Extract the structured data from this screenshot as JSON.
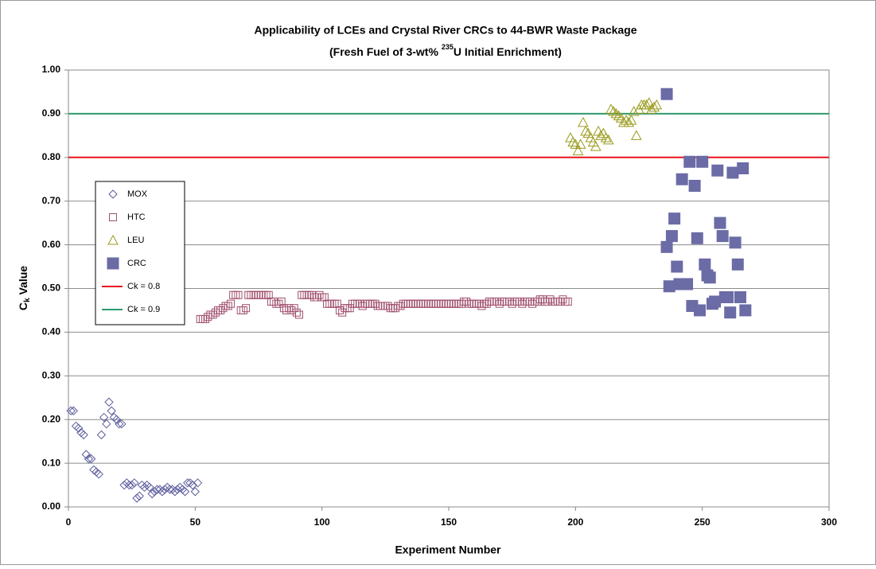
{
  "chart_data": {
    "type": "scatter",
    "title": "Applicability of LCEs and Crystal River CRCs to 44-BWR Waste Package",
    "subtitle_parts": [
      "(Fresh Fuel of 3-wt% ",
      "235",
      "U Initial Enrichment)"
    ],
    "xlabel": "Experiment Number",
    "ylabel_parts": [
      "C",
      "k",
      " Value"
    ],
    "xlim": [
      0,
      300
    ],
    "xticks": [
      0,
      50,
      100,
      150,
      200,
      250,
      300
    ],
    "ylim": [
      0,
      1
    ],
    "yticks": [
      {
        "value": 0,
        "label": "0.00"
      },
      {
        "value": 0.1,
        "label": "0.10"
      },
      {
        "value": 0.2,
        "label": "0.20"
      },
      {
        "value": 0.3,
        "label": "0.30"
      },
      {
        "value": 0.4,
        "label": "0.40"
      },
      {
        "value": 0.5,
        "label": "0.50"
      },
      {
        "value": 0.6,
        "label": "0.60"
      },
      {
        "value": 0.7,
        "label": "0.70"
      },
      {
        "value": 0.8,
        "label": "0.80"
      },
      {
        "value": 0.9,
        "label": "0.90"
      },
      {
        "value": 1,
        "label": "1.00"
      }
    ],
    "grid": true,
    "legend": "left",
    "series": [
      {
        "name": "MOX",
        "marker": "diamond",
        "color": "#5c5c9e",
        "x": [
          1,
          2,
          3,
          4,
          5,
          6,
          7,
          8,
          9,
          10,
          11,
          12,
          13,
          14,
          15,
          16,
          17,
          18,
          19,
          20,
          21,
          22,
          23,
          24,
          25,
          26,
          27,
          28,
          29,
          30,
          31,
          32,
          33,
          34,
          35,
          36,
          37,
          38,
          39,
          40,
          41,
          42,
          43,
          44,
          45,
          46,
          47,
          48,
          49,
          50,
          51
        ],
        "values": [
          0.22,
          0.22,
          0.185,
          0.18,
          0.17,
          0.165,
          0.12,
          0.11,
          0.11,
          0.085,
          0.08,
          0.075,
          0.165,
          0.205,
          0.19,
          0.24,
          0.22,
          0.205,
          0.2,
          0.19,
          0.19,
          0.05,
          0.055,
          0.05,
          0.05,
          0.055,
          0.02,
          0.025,
          0.05,
          0.045,
          0.05,
          0.045,
          0.03,
          0.035,
          0.04,
          0.04,
          0.035,
          0.04,
          0.045,
          0.04,
          0.04,
          0.035,
          0.04,
          0.045,
          0.04,
          0.035,
          0.055,
          0.055,
          0.05,
          0.035,
          0.055
        ]
      },
      {
        "name": "HTC",
        "marker": "square",
        "color": "#a0506e",
        "x": [
          52,
          53,
          54,
          55,
          56,
          57,
          58,
          59,
          60,
          61,
          62,
          63,
          64,
          65,
          66,
          67,
          68,
          69,
          70,
          71,
          72,
          73,
          74,
          75,
          76,
          77,
          78,
          79,
          80,
          81,
          82,
          83,
          84,
          85,
          86,
          87,
          88,
          89,
          90,
          91,
          92,
          93,
          94,
          95,
          96,
          97,
          98,
          99,
          100,
          101,
          102,
          103,
          104,
          105,
          106,
          107,
          108,
          109,
          110,
          111,
          112,
          113,
          114,
          115,
          116,
          117,
          118,
          119,
          120,
          121,
          122,
          123,
          124,
          125,
          126,
          127,
          128,
          129,
          130,
          131,
          132,
          133,
          134,
          135,
          136,
          137,
          138,
          139,
          140,
          141,
          142,
          143,
          144,
          145,
          146,
          147,
          148,
          149,
          150,
          151,
          152,
          153,
          154,
          155,
          156,
          157,
          158,
          159,
          160,
          161,
          162,
          163,
          164,
          165,
          166,
          167,
          168,
          169,
          170,
          171,
          172,
          173,
          174,
          175,
          176,
          177,
          178,
          179,
          180,
          181,
          182,
          183,
          184,
          185,
          186,
          187,
          188,
          189,
          190,
          191,
          192,
          193,
          194,
          195,
          196,
          197
        ],
        "values": [
          0.43,
          0.43,
          0.43,
          0.435,
          0.44,
          0.44,
          0.445,
          0.45,
          0.45,
          0.455,
          0.46,
          0.46,
          0.465,
          0.485,
          0.485,
          0.485,
          0.45,
          0.45,
          0.455,
          0.485,
          0.485,
          0.485,
          0.485,
          0.485,
          0.485,
          0.485,
          0.485,
          0.485,
          0.47,
          0.47,
          0.465,
          0.465,
          0.47,
          0.455,
          0.45,
          0.455,
          0.45,
          0.455,
          0.445,
          0.44,
          0.485,
          0.485,
          0.485,
          0.485,
          0.485,
          0.48,
          0.48,
          0.485,
          0.48,
          0.48,
          0.465,
          0.465,
          0.465,
          0.465,
          0.465,
          0.45,
          0.445,
          0.455,
          0.455,
          0.455,
          0.465,
          0.465,
          0.465,
          0.465,
          0.46,
          0.465,
          0.465,
          0.465,
          0.465,
          0.465,
          0.46,
          0.46,
          0.46,
          0.46,
          0.46,
          0.455,
          0.455,
          0.455,
          0.46,
          0.46,
          0.465,
          0.465,
          0.465,
          0.465,
          0.465,
          0.465,
          0.465,
          0.465,
          0.465,
          0.465,
          0.465,
          0.465,
          0.465,
          0.465,
          0.465,
          0.465,
          0.465,
          0.465,
          0.465,
          0.465,
          0.465,
          0.465,
          0.465,
          0.465,
          0.47,
          0.47,
          0.465,
          0.465,
          0.465,
          0.465,
          0.465,
          0.46,
          0.465,
          0.465,
          0.47,
          0.47,
          0.47,
          0.47,
          0.465,
          0.47,
          0.47,
          0.47,
          0.47,
          0.465,
          0.47,
          0.47,
          0.47,
          0.465,
          0.47,
          0.47,
          0.47,
          0.465,
          0.47,
          0.47,
          0.475,
          0.475,
          0.47,
          0.47,
          0.475,
          0.47,
          0.47,
          0.47,
          0.47,
          0.475,
          0.47,
          0.47
        ]
      },
      {
        "name": "LEU",
        "marker": "triangle",
        "color": "#9a9a1e",
        "x": [
          198,
          199,
          200,
          201,
          202,
          203,
          204,
          205,
          206,
          207,
          208,
          209,
          210,
          211,
          212,
          213,
          214,
          215,
          216,
          217,
          218,
          219,
          220,
          221,
          222,
          223,
          224,
          225,
          226,
          227,
          228,
          229,
          230,
          231,
          232
        ],
        "values": [
          0.845,
          0.835,
          0.83,
          0.815,
          0.83,
          0.88,
          0.86,
          0.855,
          0.845,
          0.835,
          0.825,
          0.86,
          0.85,
          0.855,
          0.845,
          0.84,
          0.91,
          0.905,
          0.9,
          0.895,
          0.89,
          0.88,
          0.885,
          0.88,
          0.885,
          0.905,
          0.85,
          0.91,
          0.92,
          0.92,
          0.92,
          0.925,
          0.91,
          0.915,
          0.92
        ]
      },
      {
        "name": "CRC",
        "marker": "filled-square",
        "color": "#6b6ba6",
        "x": [
          236,
          236,
          237,
          238,
          239,
          240,
          241,
          242,
          243,
          244,
          245,
          246,
          247,
          248,
          249,
          250,
          251,
          252,
          253,
          254,
          255,
          256,
          257,
          258,
          259,
          260,
          261,
          262,
          263,
          264,
          265,
          266,
          267
        ],
        "values": [
          0.945,
          0.595,
          0.505,
          0.62,
          0.66,
          0.55,
          0.51,
          0.75,
          0.51,
          0.51,
          0.79,
          0.46,
          0.735,
          0.615,
          0.45,
          0.79,
          0.555,
          0.53,
          0.525,
          0.465,
          0.47,
          0.77,
          0.65,
          0.62,
          0.48,
          0.48,
          0.445,
          0.765,
          0.605,
          0.555,
          0.48,
          0.775,
          0.45
        ]
      }
    ],
    "reference_lines": [
      {
        "name": "Ck = 0.8",
        "value": 0.8,
        "color": "#e8141c"
      },
      {
        "name": "Ck = 0.9",
        "value": 0.9,
        "color": "#2e9a6e"
      }
    ]
  }
}
